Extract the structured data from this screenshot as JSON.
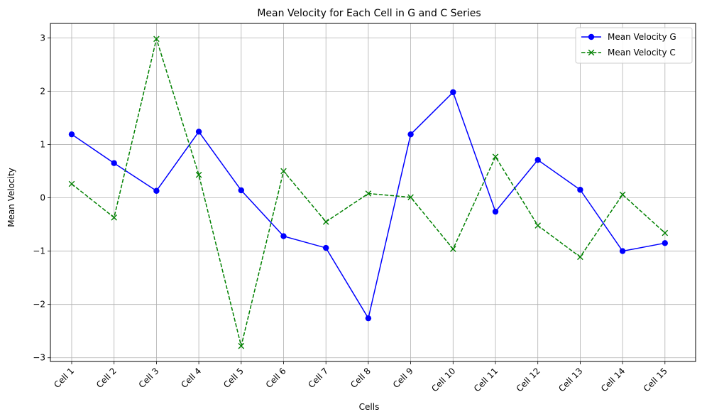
{
  "chart_data": {
    "type": "line",
    "title": "Mean Velocity for Each Cell in G and C Series",
    "xlabel": "Cells",
    "ylabel": "Mean Velocity",
    "categories": [
      "Cell 1",
      "Cell 2",
      "Cell 3",
      "Cell 4",
      "Cell 5",
      "Cell 6",
      "Cell 7",
      "Cell 8",
      "Cell 9",
      "Cell 10",
      "Cell 11",
      "Cell 12",
      "Cell 13",
      "Cell 14",
      "Cell 15"
    ],
    "ylim": [
      -3.07,
      3.27
    ],
    "yticks": [
      -3,
      -2,
      -1,
      0,
      1,
      2,
      3
    ],
    "ytick_labels": [
      "−3",
      "−2",
      "−1",
      "0",
      "1",
      "2",
      "3"
    ],
    "grid": true,
    "legend_position": "top-right",
    "series": [
      {
        "name": "Mean Velocity G",
        "color": "#0000ff",
        "marker": "circle",
        "linestyle": "solid",
        "values": [
          1.19,
          0.65,
          0.13,
          1.24,
          0.14,
          -0.72,
          -0.94,
          -2.26,
          1.19,
          1.98,
          -0.26,
          0.71,
          0.15,
          -1.0,
          -0.85
        ]
      },
      {
        "name": "Mean Velocity C",
        "color": "#008000",
        "marker": "x",
        "linestyle": "dashed",
        "values": [
          0.26,
          -0.37,
          2.98,
          0.43,
          -2.78,
          0.5,
          -0.45,
          0.08,
          0.01,
          -0.96,
          0.77,
          -0.52,
          -1.11,
          0.06,
          -0.66
        ]
      }
    ]
  }
}
